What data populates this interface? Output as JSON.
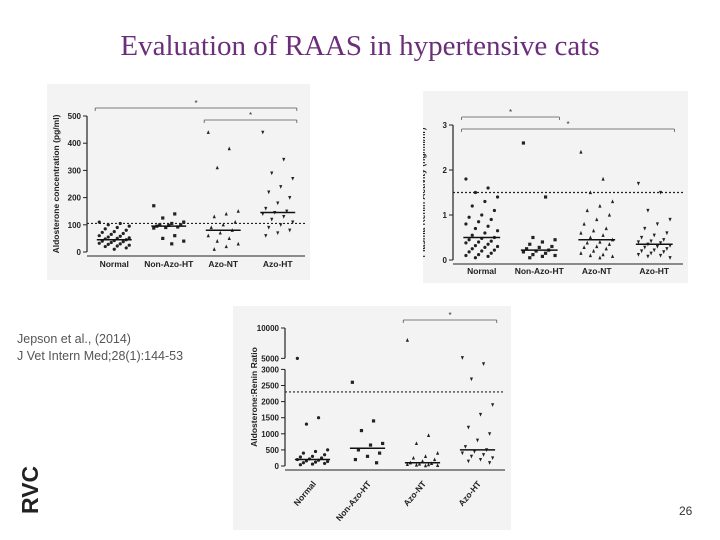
{
  "title": "Evaluation of RAAS in hypertensive cats",
  "citation": {
    "line1": "Jepson et al., (2014)",
    "line2": "J Vet Intern Med;28(1):144-53"
  },
  "logo_text": "RVC",
  "page_number": "26",
  "chart_data": [
    {
      "type": "scatter",
      "title": "",
      "ylabel": "Aldosterone concentration (pg/ml)",
      "ylim": [
        0,
        500
      ],
      "yticks": [
        "0",
        "100",
        "200",
        "300",
        "400",
        "500"
      ],
      "yticks_values": [
        0,
        100,
        200,
        300,
        400,
        500
      ],
      "categories": [
        "Normal",
        "Non-Azo-HT",
        "Azo-NT",
        "Azo-HT"
      ],
      "medians": [
        45,
        95,
        80,
        145
      ],
      "reference_line": 105,
      "markers": [
        "circle",
        "square",
        "triangle",
        "triangle-down"
      ],
      "series": [
        {
          "name": "Normal",
          "values": [
            110,
            105,
            100,
            95,
            90,
            85,
            80,
            75,
            72,
            68,
            65,
            60,
            58,
            55,
            52,
            50,
            48,
            45,
            42,
            40,
            38,
            35,
            32,
            30,
            28,
            25,
            22,
            20,
            15,
            10
          ]
        },
        {
          "name": "Non-Azo-HT",
          "values": [
            170,
            140,
            125,
            110,
            105,
            100,
            100,
            98,
            95,
            92,
            90,
            88,
            60,
            50,
            40,
            30
          ]
        },
        {
          "name": "Azo-NT",
          "values": [
            440,
            380,
            310,
            150,
            140,
            130,
            110,
            100,
            90,
            80,
            70,
            60,
            50,
            40,
            30,
            20,
            10
          ]
        },
        {
          "name": "Azo-HT",
          "values": [
            440,
            340,
            290,
            270,
            240,
            220,
            200,
            180,
            160,
            150,
            145,
            140,
            130,
            120,
            110,
            100,
            90,
            80,
            70,
            60
          ]
        }
      ],
      "significance": [
        {
          "label": "*",
          "from": "Normal",
          "to": "Azo-HT"
        },
        {
          "label": "*",
          "from": "Azo-NT",
          "to": "Azo-HT"
        }
      ]
    },
    {
      "type": "scatter",
      "title": "",
      "ylabel": "Plasma Renin Activity (ng/ml/hr)",
      "ylim": [
        0,
        3
      ],
      "yticks": [
        "0",
        "1",
        "2",
        "3"
      ],
      "yticks_values": [
        0,
        1,
        2,
        3
      ],
      "categories": [
        "Normal",
        "Non-Azo-HT",
        "Azo-NT",
        "Azo-HT"
      ],
      "medians": [
        0.5,
        0.22,
        0.45,
        0.35
      ],
      "reference_line": 1.5,
      "markers": [
        "circle",
        "square",
        "triangle",
        "triangle-down"
      ],
      "series": [
        {
          "name": "Normal",
          "values": [
            1.8,
            1.6,
            1.5,
            1.4,
            1.3,
            1.2,
            1.1,
            1.0,
            0.95,
            0.9,
            0.85,
            0.8,
            0.75,
            0.7,
            0.65,
            0.6,
            0.55,
            0.5,
            0.48,
            0.45,
            0.42,
            0.4,
            0.38,
            0.35,
            0.32,
            0.3,
            0.28,
            0.25,
            0.22,
            0.2,
            0.18,
            0.15,
            0.12,
            0.1,
            0.08,
            0.05
          ]
        },
        {
          "name": "Non-Azo-HT",
          "values": [
            2.6,
            1.4,
            0.5,
            0.45,
            0.4,
            0.35,
            0.3,
            0.28,
            0.25,
            0.22,
            0.2,
            0.18,
            0.15,
            0.12,
            0.1,
            0.08,
            0.05
          ]
        },
        {
          "name": "Azo-NT",
          "values": [
            2.4,
            1.8,
            1.5,
            1.3,
            1.2,
            1.1,
            1.0,
            0.9,
            0.8,
            0.7,
            0.65,
            0.6,
            0.55,
            0.5,
            0.45,
            0.4,
            0.38,
            0.35,
            0.3,
            0.28,
            0.25,
            0.2,
            0.15,
            0.12,
            0.1,
            0.08,
            0.05
          ]
        },
        {
          "name": "Azo-HT",
          "values": [
            1.7,
            1.5,
            1.1,
            0.9,
            0.8,
            0.7,
            0.6,
            0.55,
            0.5,
            0.45,
            0.42,
            0.4,
            0.38,
            0.35,
            0.32,
            0.3,
            0.28,
            0.25,
            0.22,
            0.2,
            0.18,
            0.15,
            0.12,
            0.1,
            0.08,
            0.05
          ]
        }
      ],
      "significance": [
        {
          "label": "*",
          "from": "Normal",
          "to": "Non-Azo-HT"
        },
        {
          "label": "*",
          "from": "Normal",
          "to": "Azo-HT"
        }
      ]
    },
    {
      "type": "scatter",
      "title": "",
      "ylabel": "Aldosterone:Renin Ratio",
      "ylim": [
        0,
        10000
      ],
      "yticks": [
        "0",
        "500",
        "1000",
        "1500",
        "2000",
        "2500",
        "3000",
        "5000",
        "10000"
      ],
      "yticks_values": [
        0,
        500,
        1000,
        1500,
        2000,
        2500,
        3000,
        5000,
        10000
      ],
      "axis_break": [
        3000,
        5000
      ],
      "categories": [
        "Normal",
        "Non-Azo-HT",
        "Azo-NT",
        "Azo-HT"
      ],
      "medians": [
        200,
        550,
        100,
        500
      ],
      "reference_line": 2300,
      "markers": [
        "circle",
        "square",
        "triangle",
        "triangle-down"
      ],
      "series": [
        {
          "name": "Normal",
          "values": [
            5000,
            1500,
            1300,
            500,
            450,
            400,
            350,
            300,
            280,
            250,
            220,
            200,
            180,
            160,
            140,
            120,
            100,
            80,
            60,
            40
          ]
        },
        {
          "name": "Non-Azo-HT",
          "values": [
            2600,
            1400,
            1100,
            700,
            650,
            500,
            400,
            300,
            200,
            100
          ]
        },
        {
          "name": "Azo-NT",
          "values": [
            8000,
            950,
            700,
            400,
            300,
            250,
            200,
            150,
            100,
            80,
            60,
            50,
            40,
            30,
            20,
            10
          ]
        },
        {
          "name": "Azo-HT",
          "values": [
            5100,
            4800,
            2700,
            1900,
            1600,
            1200,
            1000,
            800,
            600,
            500,
            450,
            400,
            350,
            300,
            250,
            200,
            150,
            100
          ]
        }
      ],
      "significance": [
        {
          "label": "*",
          "from": "Azo-NT",
          "to": "Azo-HT"
        }
      ]
    }
  ]
}
